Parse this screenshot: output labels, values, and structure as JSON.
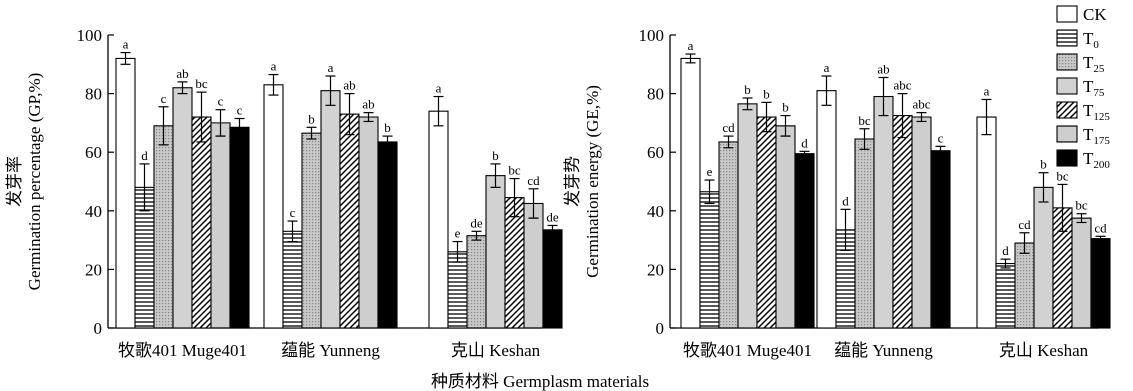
{
  "shared_xlabel": "种质材料 Germplasm materials",
  "legend": [
    {
      "key": "CK",
      "label": "CK",
      "sub": "",
      "pattern": "open"
    },
    {
      "key": "T0",
      "label": "T",
      "sub": "0",
      "pattern": "hlines-dense"
    },
    {
      "key": "T25",
      "label": "T",
      "sub": "25",
      "pattern": "gray-dots"
    },
    {
      "key": "T75",
      "label": "T",
      "sub": "75",
      "pattern": "light-gray"
    },
    {
      "key": "T125",
      "label": "T",
      "sub": "125",
      "pattern": "diag"
    },
    {
      "key": "T175",
      "label": "T",
      "sub": "175",
      "pattern": "fine-hlines"
    },
    {
      "key": "T200",
      "label": "T",
      "sub": "200",
      "pattern": "solid"
    }
  ],
  "chart_data": [
    {
      "type": "bar",
      "ylabel_cn": "发芽率",
      "ylabel_en": "Germination percentage (GP,%)",
      "ylim": [
        0,
        100
      ],
      "yticks": [
        0,
        20,
        40,
        60,
        80,
        100
      ],
      "categories": [
        "牧歌401 Muge401",
        "蕴能 Yunneng",
        "克山 Keshan"
      ],
      "series": [
        {
          "name": "CK",
          "values": [
            92,
            83,
            74
          ],
          "errors": [
            2,
            3.5,
            5
          ],
          "letters": [
            "a",
            "a",
            "a"
          ]
        },
        {
          "name": "T0",
          "values": [
            48,
            33,
            26
          ],
          "errors": [
            8,
            3.5,
            3.5
          ],
          "letters": [
            "d",
            "c",
            "e"
          ]
        },
        {
          "name": "T25",
          "values": [
            69,
            66.5,
            31.5
          ],
          "errors": [
            6.5,
            2,
            1.5
          ],
          "letters": [
            "c",
            "b",
            "de"
          ]
        },
        {
          "name": "T75",
          "values": [
            82,
            81,
            52
          ],
          "errors": [
            2,
            5,
            4
          ],
          "letters": [
            "ab",
            "a",
            "b"
          ]
        },
        {
          "name": "T125",
          "values": [
            72,
            73,
            44.5
          ],
          "errors": [
            8.5,
            7,
            6.5
          ],
          "letters": [
            "bc",
            "ab",
            "bc"
          ]
        },
        {
          "name": "T175",
          "values": [
            70,
            72,
            42.5
          ],
          "errors": [
            4.5,
            1.5,
            5
          ],
          "letters": [
            "c",
            "ab",
            "cd"
          ]
        },
        {
          "name": "T200",
          "values": [
            68.5,
            63.5,
            33.5
          ],
          "errors": [
            3,
            2,
            1.5
          ],
          "letters": [
            "c",
            "b",
            "de"
          ]
        }
      ]
    },
    {
      "type": "bar",
      "ylabel_cn": "发芽势",
      "ylabel_en": "Germination energy (GE,%)",
      "ylim": [
        0,
        100
      ],
      "yticks": [
        0,
        20,
        40,
        60,
        80,
        100
      ],
      "categories": [
        "牧歌401 Muge401",
        "蕴能 Yunneng",
        "克山 Keshan"
      ],
      "series": [
        {
          "name": "CK",
          "values": [
            92,
            81,
            72
          ],
          "errors": [
            1.5,
            5,
            6
          ],
          "letters": [
            "a",
            "a",
            "a"
          ]
        },
        {
          "name": "T0",
          "values": [
            46.5,
            33.5,
            22
          ],
          "errors": [
            4,
            7,
            1.5
          ],
          "letters": [
            "e",
            "d",
            "d"
          ]
        },
        {
          "name": "T25",
          "values": [
            63.5,
            64.5,
            29
          ],
          "errors": [
            2,
            3.5,
            3.5
          ],
          "letters": [
            "cd",
            "bc",
            "cd"
          ]
        },
        {
          "name": "T75",
          "values": [
            76.5,
            79,
            48
          ],
          "errors": [
            2,
            6.5,
            5
          ],
          "letters": [
            "b",
            "ab",
            "b"
          ]
        },
        {
          "name": "T125",
          "values": [
            72,
            72.5,
            41
          ],
          "errors": [
            5,
            7.5,
            8
          ],
          "letters": [
            "b",
            "abc",
            "bc"
          ]
        },
        {
          "name": "T175",
          "values": [
            69,
            72,
            37.5
          ],
          "errors": [
            3.5,
            1.5,
            1.5
          ],
          "letters": [
            "b",
            "abc",
            "bc"
          ]
        },
        {
          "name": "T200",
          "values": [
            59.5,
            60.5,
            30.5
          ],
          "errors": [
            0.8,
            1.5,
            0.8
          ],
          "letters": [
            "d",
            "c",
            "cd"
          ]
        }
      ]
    }
  ]
}
